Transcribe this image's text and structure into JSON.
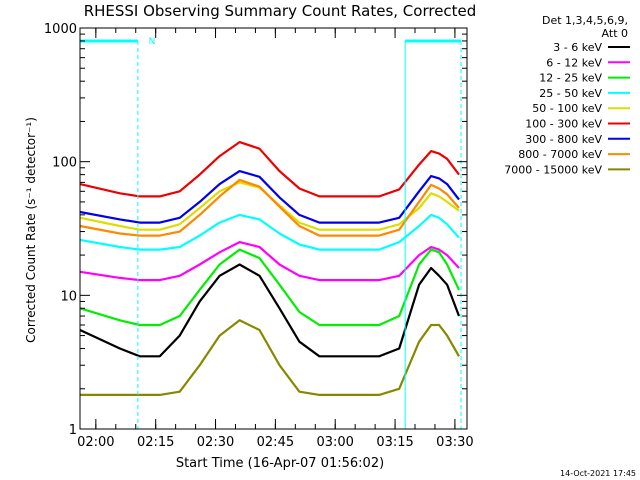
{
  "chart_data": {
    "type": "line",
    "title": "RHESSI Observing Summary Count Rates, Corrected",
    "xlabel": "Start Time (16-Apr-07 01:56:02)",
    "ylabel": "Corrected Count Rate (s⁻¹ detector⁻¹)",
    "yscale": "log",
    "ylim": [
      1,
      1000
    ],
    "xlim_minutes": [
      0,
      97
    ],
    "x_ticks": [
      {
        "label": "02:00",
        "minutes": 3.97
      },
      {
        "label": "02:15",
        "minutes": 18.97
      },
      {
        "label": "02:30",
        "minutes": 33.97
      },
      {
        "label": "02:45",
        "minutes": 48.97
      },
      {
        "label": "03:00",
        "minutes": 63.97
      },
      {
        "label": "03:15",
        "minutes": 78.97
      },
      {
        "label": "03:30",
        "minutes": 93.97
      }
    ],
    "y_ticks": [
      {
        "label": "1",
        "value": 1
      },
      {
        "label": "10",
        "value": 10
      },
      {
        "label": "100",
        "value": 100
      },
      {
        "label": "1000",
        "value": 1000
      }
    ],
    "legend": {
      "placement": "right",
      "header_lines": [
        "Det 1,3,4,5,6,9,",
        "Att 0"
      ]
    },
    "night_periods_minutes": [
      [
        0,
        14.5
      ],
      [
        81.5,
        95.5
      ]
    ],
    "saa_marker": {
      "label": "N",
      "minutes": 15.2
    },
    "x": [
      0,
      10,
      15,
      20,
      25,
      30,
      35,
      40,
      45,
      50,
      55,
      60,
      65,
      70,
      75,
      80,
      85,
      88,
      90,
      92,
      95
    ],
    "series": [
      {
        "name": "3 - 6 keV",
        "color": "#000000",
        "values": [
          5.5,
          4,
          3.5,
          3.5,
          5,
          9,
          14,
          17,
          14,
          8,
          4.5,
          3.5,
          3.5,
          3.5,
          3.5,
          4,
          12,
          16,
          14,
          12,
          7
        ]
      },
      {
        "name": "6 - 12 keV",
        "color": "#ff00ff",
        "values": [
          15,
          13.5,
          13,
          13,
          14,
          17,
          21,
          25,
          23,
          17,
          14,
          13,
          13,
          13,
          13,
          14,
          20,
          23,
          22,
          20,
          16
        ]
      },
      {
        "name": "12 - 25 keV",
        "color": "#00ee00",
        "values": [
          8,
          6.5,
          6,
          6,
          7,
          11,
          17,
          22,
          19,
          12,
          7.5,
          6,
          6,
          6,
          6,
          7,
          17,
          22,
          21,
          17,
          11
        ]
      },
      {
        "name": "25 - 50 keV",
        "color": "#00ffff",
        "values": [
          26,
          23,
          22,
          22,
          23,
          28,
          35,
          40,
          37,
          29,
          24,
          22,
          22,
          22,
          22,
          25,
          33,
          40,
          38,
          34,
          27
        ]
      },
      {
        "name": "50 - 100 keV",
        "color": "#dddd00",
        "values": [
          38,
          33,
          31,
          31,
          34,
          45,
          60,
          70,
          64,
          47,
          35,
          31,
          31,
          31,
          31,
          34,
          45,
          58,
          55,
          50,
          43
        ]
      },
      {
        "name": "100 - 300 keV",
        "color": "#ee0000",
        "values": [
          68,
          58,
          55,
          55,
          60,
          80,
          110,
          140,
          125,
          85,
          63,
          55,
          55,
          55,
          55,
          62,
          95,
          120,
          115,
          105,
          80
        ]
      },
      {
        "name": "300 - 800 keV",
        "color": "#0000ee",
        "values": [
          42,
          37,
          35,
          35,
          38,
          50,
          68,
          85,
          77,
          54,
          40,
          35,
          35,
          35,
          35,
          38,
          60,
          78,
          75,
          68,
          52
        ]
      },
      {
        "name": "800 - 7000 keV",
        "color": "#ff8800",
        "values": [
          33,
          29,
          28,
          28,
          30,
          40,
          55,
          73,
          65,
          46,
          33,
          28,
          28,
          28,
          28,
          31,
          50,
          67,
          63,
          57,
          45
        ]
      },
      {
        "name": "7000 - 15000 keV",
        "color": "#888800",
        "values": [
          1.8,
          1.8,
          1.8,
          1.8,
          1.9,
          3,
          5,
          6.5,
          5.5,
          3,
          1.9,
          1.8,
          1.8,
          1.8,
          1.8,
          2,
          4.5,
          6,
          6,
          5,
          3.5
        ]
      }
    ]
  },
  "footer": {
    "timestamp": "14-Oct-2021 17:45"
  }
}
